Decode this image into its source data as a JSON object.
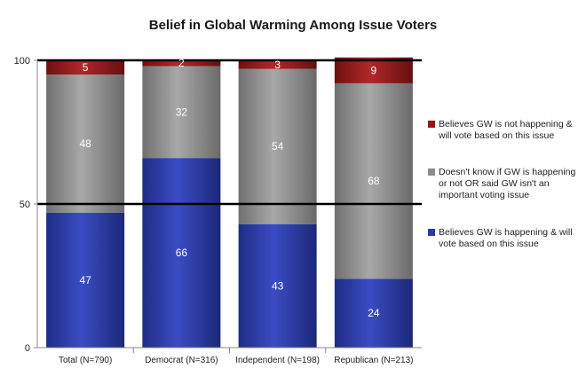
{
  "chart_data": {
    "type": "bar",
    "stacked": true,
    "title": "Belief in Global Warming Among Issue Voters",
    "categories": [
      "Total (N=790)",
      "Democrat (N=316)",
      "Independent (N=198)",
      "Republican (N=213)"
    ],
    "series": [
      {
        "name": "Believes GW is happening & will vote based on this issue",
        "values": [
          47,
          66,
          43,
          24
        ],
        "color": "#2a3aa6"
      },
      {
        "name": "Doesn't know if GW is happening or not OR said GW isn't an important voting issue",
        "values": [
          48,
          32,
          54,
          68
        ],
        "color": "#8c8c8c"
      },
      {
        "name": "Believes GW is not happening & will vote based on this issue",
        "values": [
          5,
          2,
          3,
          9
        ],
        "color": "#8e1a1a"
      }
    ],
    "legend_order": [
      2,
      1,
      0
    ],
    "legend_position": "right",
    "ylim": [
      0,
      100
    ],
    "yticks": [
      0,
      50,
      100
    ],
    "reference_lines": [
      50,
      100
    ],
    "xlabel": "",
    "ylabel": ""
  }
}
